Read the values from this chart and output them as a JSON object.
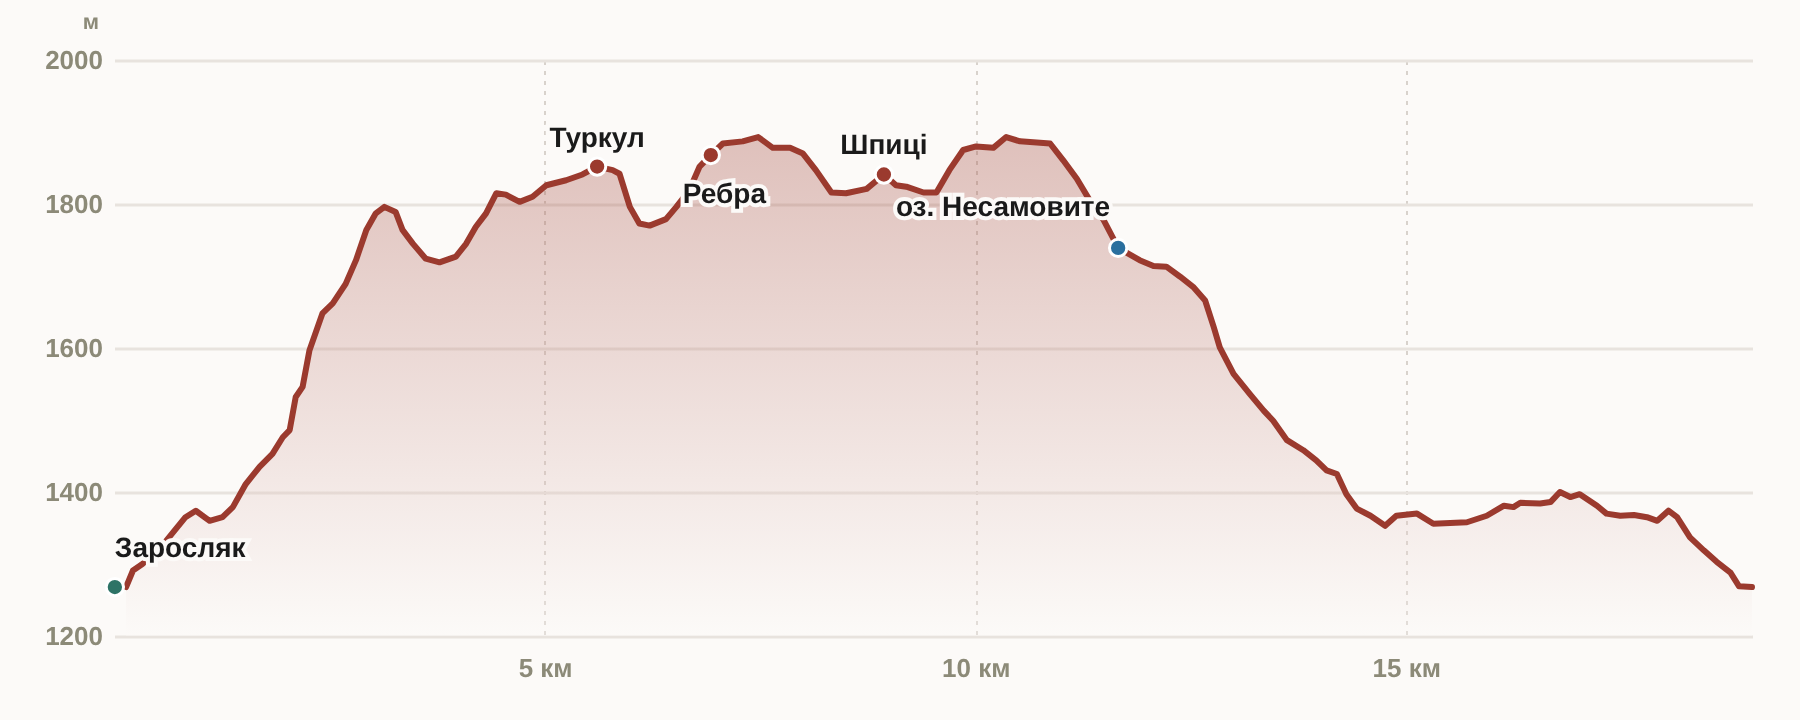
{
  "chart_data": {
    "type": "area",
    "ylabel": "м",
    "xlim": [
      0,
      19.02
    ],
    "xticks": [
      {
        "value": 5,
        "label": "5 км"
      },
      {
        "value": 10,
        "label": "10 км"
      },
      {
        "value": 15,
        "label": "15 км"
      }
    ],
    "ylim": [
      1200,
      2000
    ],
    "yticks": [
      1200,
      1400,
      1600,
      1800,
      2000
    ],
    "grid": true,
    "series": [
      {
        "color": "#9b3a2e",
        "line_style": "solid",
        "x": [
          0.14,
          0.22,
          0.33,
          0.53,
          0.7,
          0.83,
          0.95,
          1.11,
          1.26,
          1.38,
          1.53,
          1.69,
          1.84,
          1.96,
          2.04,
          2.11,
          2.19,
          2.27,
          2.42,
          2.54,
          2.69,
          2.81,
          2.93,
          3.04,
          3.14,
          3.27,
          3.35,
          3.47,
          3.62,
          3.78,
          3.97,
          4.09,
          4.2,
          4.32,
          4.44,
          4.55,
          4.71,
          4.86,
          5.02,
          5.25,
          5.44,
          5.61,
          5.79,
          5.87,
          5.99,
          6.1,
          6.22,
          6.41,
          6.53,
          6.68,
          6.8,
          6.93,
          7.07,
          7.3,
          7.48,
          7.65,
          7.85,
          8.0,
          8.15,
          8.33,
          8.5,
          8.74,
          8.94,
          9.08,
          9.2,
          9.4,
          9.55,
          9.7,
          9.86,
          10.01,
          10.21,
          10.36,
          10.52,
          10.87,
          11.02,
          11.18,
          11.33,
          11.49,
          11.66,
          11.91,
          12.07,
          12.22,
          12.38,
          12.53,
          12.67,
          12.77,
          12.84,
          13.0,
          13.19,
          13.35,
          13.46,
          13.62,
          13.81,
          13.96,
          14.08,
          14.2,
          14.31,
          14.43,
          14.59,
          14.76,
          14.89,
          15.13,
          15.32,
          15.71,
          15.94,
          16.14,
          16.25,
          16.33,
          16.56,
          16.68,
          16.79,
          16.91,
          17.02,
          17.22,
          17.33,
          17.49,
          17.65,
          17.8,
          17.92,
          18.05,
          18.15,
          18.3,
          18.46,
          18.61,
          18.77,
          18.87,
          19.02
        ],
        "values": [
          1268,
          1291,
          1300,
          1321,
          1346,
          1365,
          1374,
          1360,
          1365,
          1379,
          1411,
          1435,
          1453,
          1476,
          1486,
          1532,
          1546,
          1597,
          1648,
          1662,
          1689,
          1722,
          1764,
          1787,
          1796,
          1789,
          1764,
          1745,
          1724,
          1719,
          1727,
          1745,
          1768,
          1787,
          1815,
          1813,
          1803,
          1810,
          1826,
          1833,
          1841,
          1852,
          1847,
          1842,
          1796,
          1773,
          1770,
          1779,
          1796,
          1819,
          1852,
          1868,
          1884,
          1887,
          1893,
          1878,
          1878,
          1870,
          1847,
          1816,
          1815,
          1821,
          1841,
          1826,
          1824,
          1816,
          1816,
          1847,
          1875,
          1880,
          1878,
          1893,
          1887,
          1884,
          1861,
          1835,
          1805,
          1778,
          1739,
          1722,
          1714,
          1713,
          1699,
          1685,
          1666,
          1629,
          1601,
          1564,
          1536,
          1513,
          1499,
          1472,
          1458,
          1444,
          1430,
          1425,
          1397,
          1377,
          1367,
          1353,
          1367,
          1370,
          1356,
          1358,
          1367,
          1381,
          1379,
          1385,
          1384,
          1386,
          1400,
          1393,
          1397,
          1381,
          1370,
          1367,
          1368,
          1365,
          1360,
          1374,
          1365,
          1337,
          1319,
          1303,
          1288,
          1269,
          1268
        ]
      },
      {
        "type": "scatter",
        "marker": "circle",
        "x": [
          0.01,
          5.61,
          6.93,
          8.94,
          11.66
        ],
        "values": [
          1268,
          1852,
          1868,
          1841,
          1739
        ],
        "colors": [
          "#2e7366",
          "#9b3a2e",
          "#9b3a2e",
          "#9b3a2e",
          "#2a6f9e"
        ]
      }
    ],
    "annotations": [
      {
        "text": "Заросляк",
        "x": 0.01,
        "y": 1268
      },
      {
        "text": "Туркул",
        "x": 5.61,
        "y": 1852
      },
      {
        "text": "Ребра",
        "x": 6.93,
        "y": 1868
      },
      {
        "text": "Шпиці",
        "x": 8.94,
        "y": 1841
      },
      {
        "text": "оз. Несамовите",
        "x": 11.66,
        "y": 1739
      }
    ]
  }
}
